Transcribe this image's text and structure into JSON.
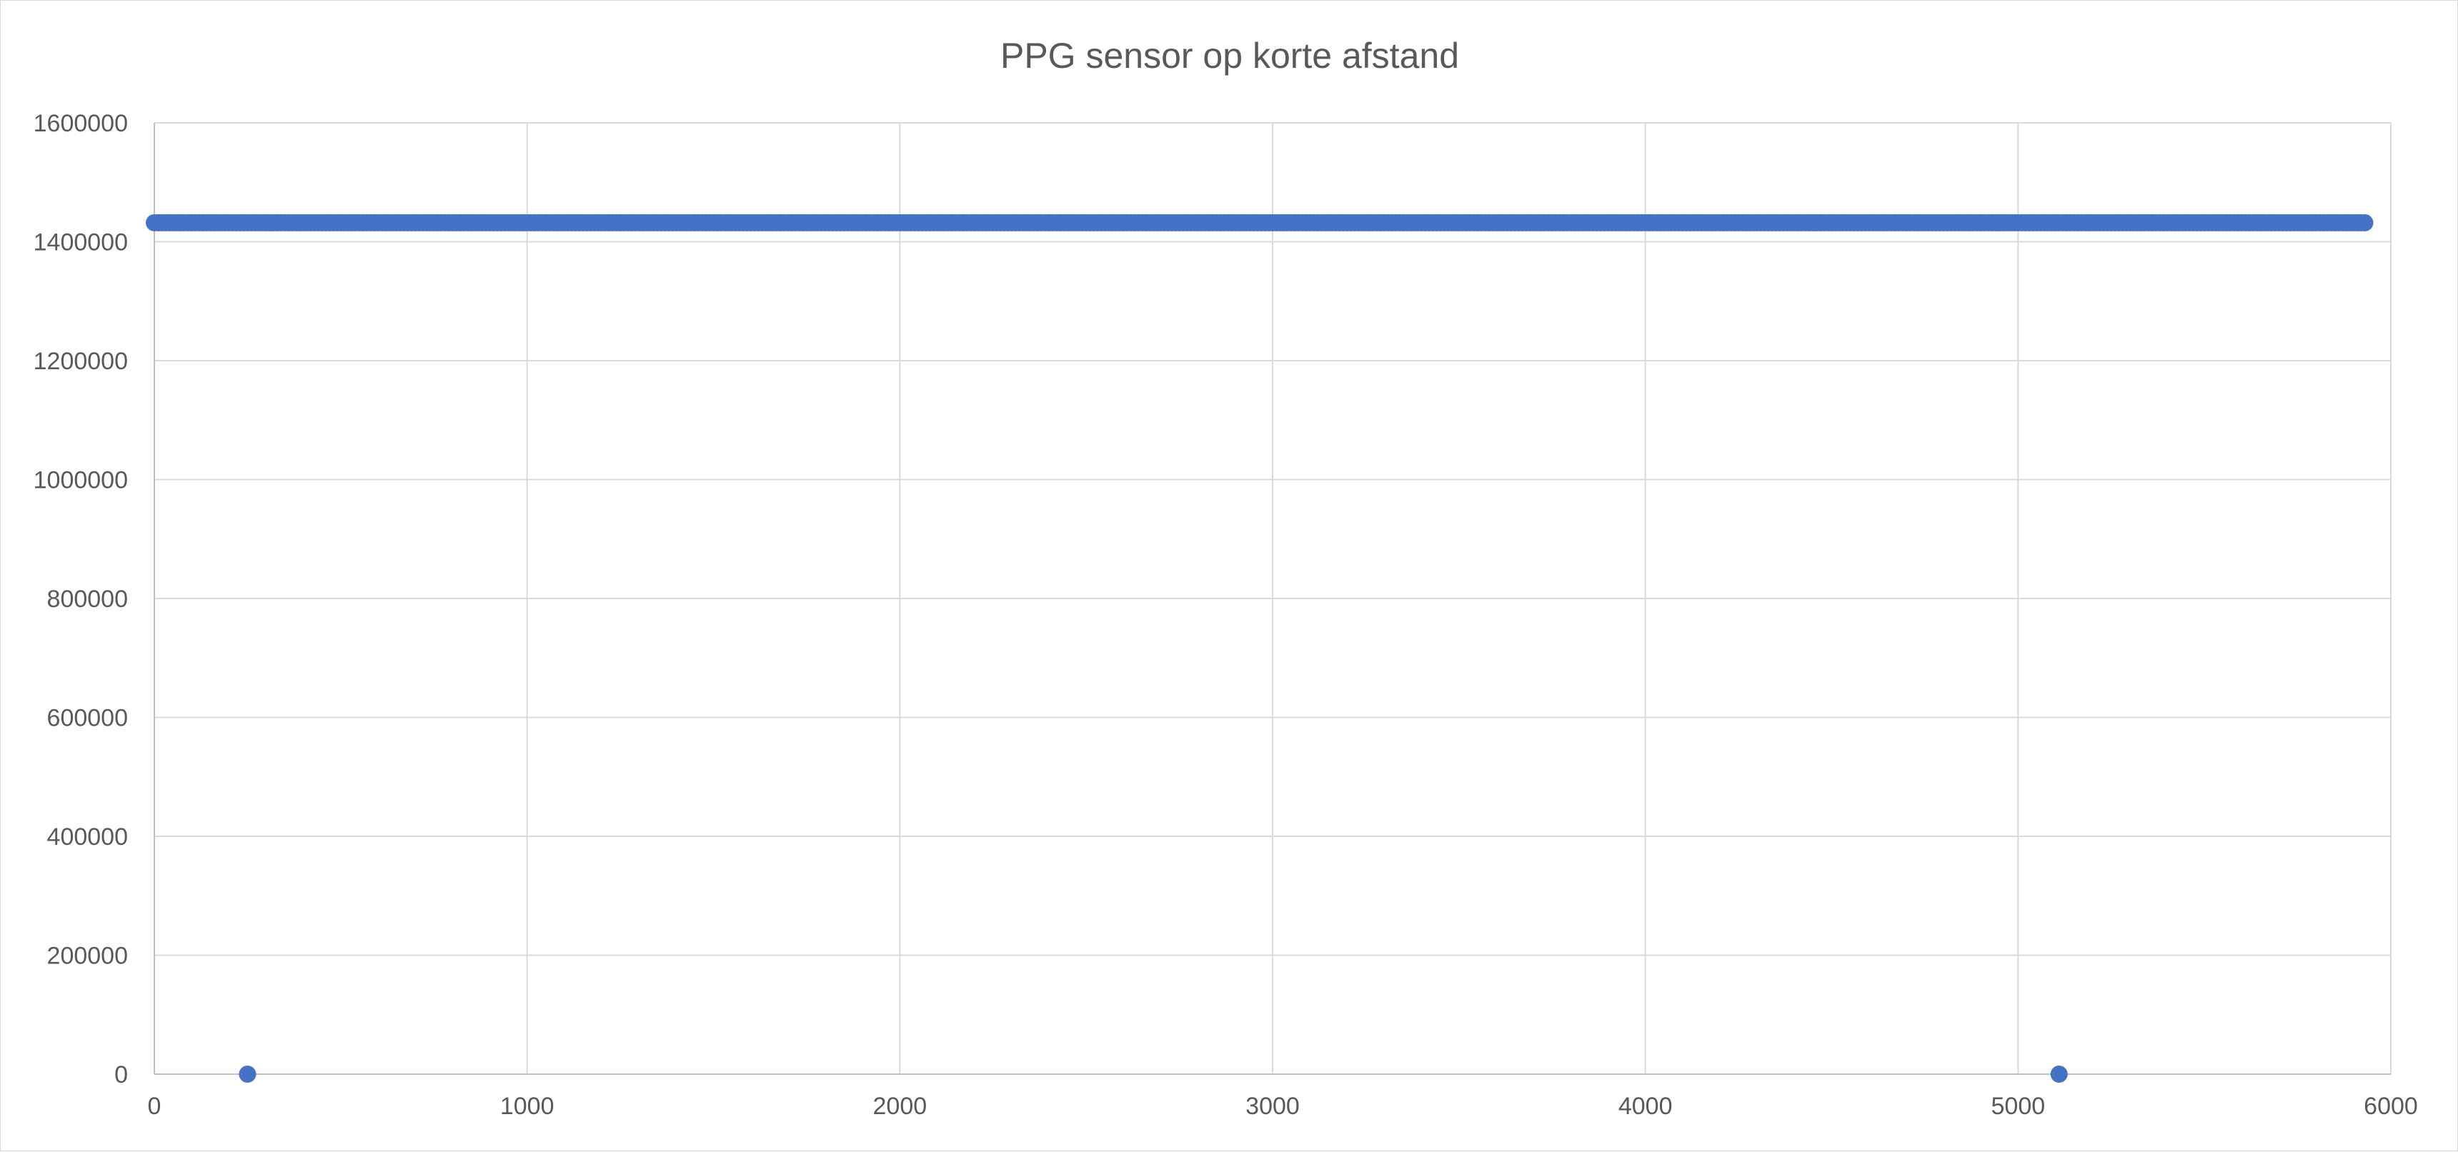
{
  "chart_data": {
    "type": "scatter",
    "title": "PPG sensor op korte afstand",
    "xlabel": "",
    "ylabel": "",
    "xlim": [
      0,
      6000
    ],
    "ylim": [
      0,
      1600000
    ],
    "x_ticks": [
      0,
      1000,
      2000,
      3000,
      4000,
      5000,
      6000
    ],
    "y_ticks": [
      0,
      200000,
      400000,
      600000,
      800000,
      1000000,
      1200000,
      1400000,
      1600000
    ],
    "grid": true,
    "legend": "none",
    "marker_color": "#4472C4",
    "series": [
      {
        "dense_range": {
          "x_start": 0,
          "x_end": 5930,
          "step": 10,
          "y": 1432000
        },
        "points": [
          {
            "x": 250,
            "y": 0
          },
          {
            "x": 5110,
            "y": 0
          }
        ]
      }
    ]
  }
}
